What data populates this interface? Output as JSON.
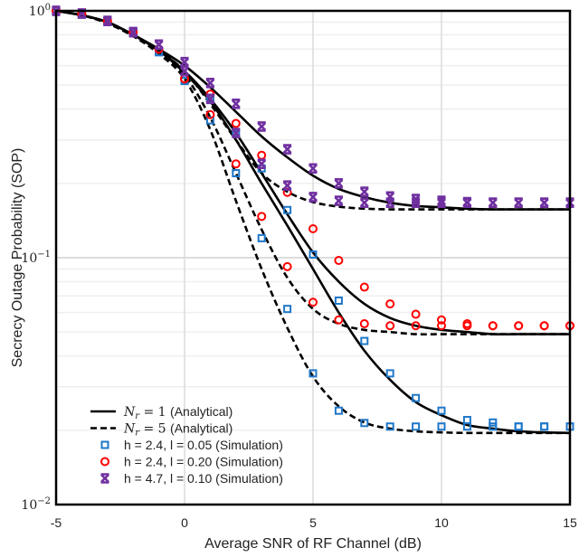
{
  "chart_data": {
    "type": "line",
    "xlabel": "Average SNR of RF Channel (dB)",
    "ylabel": "Secrecy Outage Probability (SOP)",
    "xlim": [
      -5,
      15
    ],
    "ylim": [
      0.01,
      1
    ],
    "yscale": "log",
    "grid": true,
    "legend_position": "bottom-left",
    "x_ticks": [
      "-5",
      "0",
      "5",
      "10",
      "15"
    ],
    "y_ticks": [
      {
        "base": "10",
        "exp": "0"
      },
      {
        "base": "10",
        "exp": "−1"
      },
      {
        "base": "10",
        "exp": "−2"
      }
    ],
    "x": [
      -5,
      -4,
      -3,
      -2,
      -1,
      0,
      1,
      2,
      3,
      4,
      5,
      6,
      7,
      8,
      9,
      10,
      11,
      12,
      13,
      14,
      15
    ],
    "legend": [
      {
        "label": "N_r = 1 (Analytical)",
        "symbol": "solid"
      },
      {
        "label": "N_r = 5 (Analytical)",
        "symbol": "dashed"
      },
      {
        "label": "h = 2.4, l = 0.05 (Simulation)",
        "symbol": "square",
        "color": "#1f77c9"
      },
      {
        "label": "h = 2.4, l = 0.20 (Simulation)",
        "symbol": "circle",
        "color": "#ff0000"
      },
      {
        "label": "h = 4.7, l = 0.10 (Simulation)",
        "symbol": "x",
        "color": "#7030a0"
      }
    ],
    "analytical": [
      {
        "case": "h = 4.7, l = 0.10",
        "Nr": 1,
        "style": "solid",
        "values": [
          1.0,
          0.96,
          0.9,
          0.8,
          0.7,
          0.6,
          0.49,
          0.39,
          0.31,
          0.255,
          0.215,
          0.19,
          0.176,
          0.167,
          0.162,
          0.16,
          0.158,
          0.157,
          0.157,
          0.157,
          0.157
        ]
      },
      {
        "case": "h = 4.7, l = 0.10",
        "Nr": 5,
        "style": "dashed",
        "values": [
          1.0,
          0.96,
          0.9,
          0.8,
          0.69,
          0.57,
          0.42,
          0.3,
          0.22,
          0.185,
          0.168,
          0.161,
          0.158,
          0.157,
          0.157,
          0.157,
          0.157,
          0.157,
          0.157,
          0.157,
          0.157
        ]
      },
      {
        "case": "h = 2.4, l = 0.20",
        "Nr": 1,
        "style": "solid",
        "values": [
          1.0,
          0.96,
          0.9,
          0.8,
          0.69,
          0.57,
          0.44,
          0.32,
          0.22,
          0.15,
          0.105,
          0.08,
          0.065,
          0.057,
          0.053,
          0.051,
          0.05,
          0.049,
          0.049,
          0.049,
          0.049
        ]
      },
      {
        "case": "h = 2.4, l = 0.20",
        "Nr": 5,
        "style": "dashed",
        "values": [
          1.0,
          0.96,
          0.89,
          0.79,
          0.68,
          0.55,
          0.37,
          0.22,
          0.13,
          0.083,
          0.062,
          0.054,
          0.051,
          0.05,
          0.049,
          0.049,
          0.049,
          0.049,
          0.049,
          0.049,
          0.049
        ]
      },
      {
        "case": "h = 2.4, l = 0.05",
        "Nr": 1,
        "style": "solid",
        "values": [
          1.0,
          0.96,
          0.9,
          0.8,
          0.69,
          0.56,
          0.43,
          0.3,
          0.2,
          0.135,
          0.09,
          0.06,
          0.042,
          0.032,
          0.026,
          0.023,
          0.021,
          0.0203,
          0.0198,
          0.0196,
          0.0195
        ]
      },
      {
        "case": "h = 2.4, l = 0.05",
        "Nr": 5,
        "style": "dashed",
        "values": [
          1.0,
          0.96,
          0.89,
          0.79,
          0.67,
          0.53,
          0.33,
          0.17,
          0.09,
          0.052,
          0.033,
          0.025,
          0.0215,
          0.0203,
          0.0198,
          0.0196,
          0.0195,
          0.0195,
          0.0195,
          0.0195,
          0.0195
        ]
      }
    ],
    "simulation": [
      {
        "case": "h = 2.4, l = 0.05",
        "Nr": 1,
        "marker": "square",
        "color": "#1f77c9",
        "values": [
          1.0,
          0.97,
          0.91,
          0.82,
          0.68,
          0.52,
          0.44,
          0.32,
          0.23,
          0.156,
          0.103,
          0.067,
          0.046,
          0.034,
          0.027,
          0.024,
          0.022,
          0.0215,
          0.0207,
          0.0207,
          0.0207
        ]
      },
      {
        "case": "h = 2.4, l = 0.05",
        "Nr": 5,
        "marker": "square",
        "color": "#1f77c9",
        "values": [
          1.0,
          0.97,
          0.91,
          0.82,
          0.68,
          0.52,
          0.36,
          0.22,
          0.12,
          0.062,
          0.034,
          0.024,
          0.0214,
          0.0207,
          0.0207,
          0.0207,
          0.0207,
          0.0207,
          0.0207,
          0.0207,
          0.0207
        ]
      },
      {
        "case": "h = 2.4, l = 0.20",
        "Nr": 1,
        "marker": "circle",
        "color": "#ff0000",
        "values": [
          1.0,
          0.97,
          0.91,
          0.82,
          0.7,
          0.53,
          0.46,
          0.35,
          0.26,
          0.184,
          0.131,
          0.0975,
          0.076,
          0.065,
          0.059,
          0.056,
          0.054,
          0.053,
          0.053,
          0.053,
          0.053
        ]
      },
      {
        "case": "h = 2.4, l = 0.20",
        "Nr": 5,
        "marker": "circle",
        "color": "#ff0000",
        "values": [
          1.0,
          0.97,
          0.91,
          0.82,
          0.7,
          0.53,
          0.38,
          0.24,
          0.147,
          0.092,
          0.066,
          0.056,
          0.054,
          0.053,
          0.053,
          0.053,
          0.053,
          0.053,
          0.053,
          0.053,
          0.053
        ]
      },
      {
        "case": "h = 4.7, l = 0.10",
        "Nr": 1,
        "marker": "x",
        "color": "#7030a0",
        "values": [
          1.0,
          0.975,
          0.91,
          0.82,
          0.73,
          0.62,
          0.51,
          0.42,
          0.34,
          0.275,
          0.23,
          0.2,
          0.185,
          0.177,
          0.173,
          0.17,
          0.168,
          0.167,
          0.167,
          0.167,
          0.167
        ]
      },
      {
        "case": "h = 4.7, l = 0.10",
        "Nr": 5,
        "marker": "x",
        "color": "#7030a0",
        "values": [
          1.0,
          0.975,
          0.91,
          0.82,
          0.73,
          0.57,
          0.44,
          0.32,
          0.24,
          0.196,
          0.176,
          0.17,
          0.167,
          0.167,
          0.167,
          0.167,
          0.167,
          0.167,
          0.167,
          0.167,
          0.167
        ]
      }
    ]
  }
}
